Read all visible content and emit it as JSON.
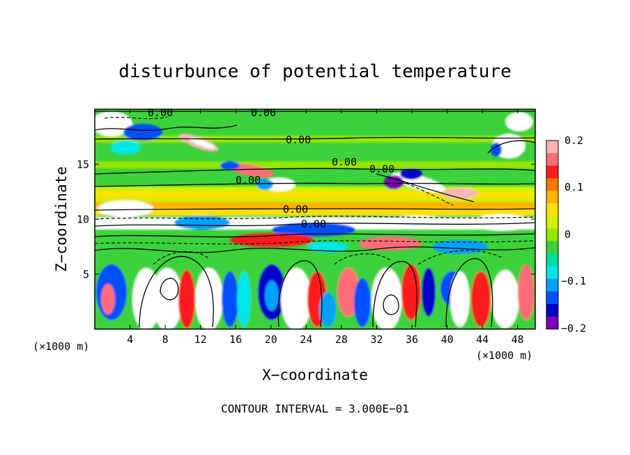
{
  "chart_data": {
    "type": "heatmap",
    "title": "disturbunce of potential temperature",
    "xlabel": "X−coordinate",
    "ylabel": "Z−coordinate",
    "x_unit_left": "(×1000 m)",
    "x_unit_right": "(×1000 m)",
    "xlim": [
      0,
      50
    ],
    "ylim": [
      0,
      20
    ],
    "x_ticks": [
      "4",
      "8",
      "12",
      "16",
      "20",
      "24",
      "28",
      "32",
      "36",
      "40",
      "44",
      "48"
    ],
    "y_ticks": [
      "5",
      "10",
      "15"
    ],
    "colorbar": {
      "range": [
        -0.2,
        0.2
      ],
      "tick_labels": [
        "0.2",
        "0.1",
        "0",
        "−0.1",
        "−0.2"
      ],
      "colors": [
        "#ffb4b4",
        "#ff6e78",
        "#ff1e1e",
        "#ff7800",
        "#ffb400",
        "#ffe000",
        "#d2f000",
        "#96e600",
        "#3cd23c",
        "#00dca0",
        "#00e6e6",
        "#00a0ff",
        "#0050ff",
        "#0000c8",
        "#7800b4"
      ]
    },
    "contour_labels": [
      "0.00",
      "0.00",
      "0.00",
      "0.00",
      "0.00",
      "0.00",
      "0.00",
      "0.00"
    ],
    "contour_interval": "CONTOUR INTERVAL = 3.000E−01"
  }
}
